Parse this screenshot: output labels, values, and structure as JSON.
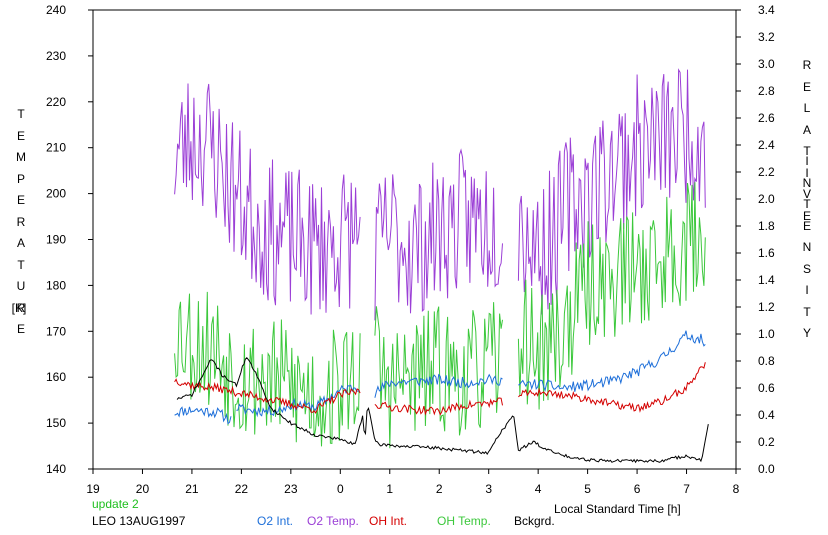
{
  "chart_data": {
    "type": "line",
    "left_axis_label_letters": [
      "T",
      "E",
      "M",
      "P",
      "E",
      "R",
      "A",
      "T",
      "U",
      "R",
      "E"
    ],
    "left_axis_unit": "[K]",
    "right_axis_label_letters": [
      "R",
      "E",
      "L",
      "A",
      "T",
      "I",
      "V",
      "E"
    ],
    "right_axis_label_letters_2": [
      "I",
      "N",
      "T",
      "E",
      "N",
      "S",
      "I",
      "T",
      "Y"
    ],
    "xlabel": "Local Standard Time [h]",
    "x_tick_labels": [
      "19",
      "20",
      "21",
      "22",
      "23",
      "0",
      "1",
      "2",
      "3",
      "4",
      "5",
      "6",
      "7",
      "8"
    ],
    "xlim": [
      19,
      32
    ],
    "y_left": {
      "lim": [
        140,
        240
      ],
      "ticks": [
        140,
        150,
        160,
        170,
        180,
        190,
        200,
        210,
        220,
        230,
        240
      ]
    },
    "y_right": {
      "lim": [
        0.0,
        3.4
      ],
      "ticks": [
        "0.0",
        "0.2",
        "0.4",
        "0.6",
        "0.8",
        "1.0",
        "1.2",
        "1.4",
        "1.6",
        "1.8",
        "2.0",
        "2.2",
        "2.4",
        "2.6",
        "2.8",
        "3.0",
        "3.2",
        "3.4"
      ]
    },
    "grid": false,
    "legend_placement": "bottom",
    "series": [
      {
        "name": "O2 Int.",
        "axis": "right",
        "color": "#1e6fd9",
        "noise": 0.04,
        "step": 0.03,
        "seed": 11,
        "segments": [
          {
            "x": [
              20.65,
              21.0,
              21.5,
              21.8
            ],
            "y": [
              0.42,
              0.44,
              0.42,
              0.36
            ]
          },
          {
            "x": [
              21.9,
              22.0,
              22.5,
              22.8,
              23.0,
              23.5,
              24.0,
              24.4
            ],
            "y": [
              0.46,
              0.44,
              0.43,
              0.44,
              0.48,
              0.46,
              0.58,
              0.62
            ]
          },
          {
            "x": [
              24.7,
              25.0,
              25.5,
              26.0,
              26.5,
              27.0,
              27.3
            ],
            "y": [
              0.56,
              0.64,
              0.65,
              0.66,
              0.64,
              0.66,
              0.66
            ]
          },
          {
            "x": [
              27.6,
              28.0,
              28.5,
              29.0,
              29.5,
              30.0,
              30.5,
              31.0,
              31.3,
              31.4
            ],
            "y": [
              0.62,
              0.63,
              0.6,
              0.62,
              0.65,
              0.72,
              0.82,
              0.99,
              0.96,
              0.88
            ]
          }
        ]
      },
      {
        "name": "O2 Temp.",
        "axis": "left",
        "color": "#9b3fd6",
        "noise": 16,
        "step": 0.03,
        "seed": 23,
        "segments": [
          {
            "x": [
              20.65,
              21.0,
              21.3,
              21.6,
              22.0,
              22.5,
              23.0,
              23.5,
              24.0,
              24.4
            ],
            "y": [
              208,
              212,
              212,
              206,
              198,
              192,
              190,
              188,
              190,
              192
            ]
          },
          {
            "x": [
              24.7,
              25.0,
              25.5,
              26.0,
              26.5,
              27.0,
              27.3
            ],
            "y": [
              186,
              192,
              188,
              192,
              194,
              194,
              194
            ]
          },
          {
            "x": [
              27.6,
              28.0,
              28.3,
              28.6,
              29.0,
              29.5,
              30.0,
              30.5,
              31.0,
              31.4
            ],
            "y": [
              195,
              188,
              190,
              198,
              200,
              206,
              210,
              212,
              214,
              212
            ]
          }
        ]
      },
      {
        "name": "OH Int.",
        "axis": "right",
        "color": "#d40000",
        "noise": 0.03,
        "step": 0.03,
        "seed": 37,
        "segments": [
          {
            "x": [
              20.65,
              21.0,
              21.5,
              22.0,
              22.5,
              23.0,
              23.5,
              24.0,
              24.4
            ],
            "y": [
              0.66,
              0.62,
              0.6,
              0.56,
              0.52,
              0.48,
              0.44,
              0.55,
              0.58
            ]
          },
          {
            "x": [
              24.7,
              25.0,
              25.5,
              26.0,
              26.5,
              27.0,
              27.3
            ],
            "y": [
              0.48,
              0.46,
              0.44,
              0.43,
              0.47,
              0.49,
              0.5
            ]
          },
          {
            "x": [
              27.6,
              28.0,
              28.5,
              29.0,
              29.5,
              30.0,
              30.5,
              31.0,
              31.4
            ],
            "y": [
              0.55,
              0.57,
              0.55,
              0.52,
              0.48,
              0.45,
              0.5,
              0.6,
              0.8
            ]
          }
        ]
      },
      {
        "name": "OH Temp.",
        "axis": "left",
        "color": "#3cc83c",
        "noise": 14,
        "step": 0.03,
        "seed": 53,
        "segments": [
          {
            "x": [
              20.65,
              21.0,
              21.5,
              22.0,
              22.5,
              23.0,
              23.5,
              24.0,
              24.4
            ],
            "y": [
              172,
              168,
              166,
              160,
              160,
              158,
              156,
              158,
              162
            ]
          },
          {
            "x": [
              24.7,
              25.0,
              25.5,
              26.0,
              26.5,
              27.0,
              27.3
            ],
            "y": [
              164,
              158,
              160,
              162,
              160,
              162,
              164
            ]
          },
          {
            "x": [
              27.6,
              28.0,
              28.5,
              29.0,
              29.5,
              30.0,
              30.5,
              31.0,
              31.4
            ],
            "y": [
              170,
              165,
              170,
              180,
              182,
              184,
              186,
              190,
              190
            ]
          }
        ]
      },
      {
        "name": "Bckgrd.",
        "axis": "right",
        "color": "#000000",
        "noise": 0.012,
        "step": 0.03,
        "seed": 71,
        "segments": [
          {
            "x": [
              20.7,
              21.0,
              21.2,
              21.4,
              21.6,
              21.9,
              22.1,
              22.3,
              22.6,
              23.0,
              23.5,
              24.0,
              24.3,
              24.45,
              24.5,
              24.55,
              24.7,
              24.8,
              24.9,
              25.2,
              25.8,
              26.4,
              27.0,
              27.2,
              27.5,
              27.6,
              27.9,
              28.2,
              28.5,
              29.0,
              29.5,
              30.0,
              30.5,
              31.0,
              31.3,
              31.45
            ],
            "y": [
              0.52,
              0.55,
              0.68,
              0.82,
              0.7,
              0.62,
              0.84,
              0.7,
              0.45,
              0.34,
              0.25,
              0.22,
              0.18,
              0.4,
              0.2,
              0.5,
              0.2,
              0.18,
              0.18,
              0.17,
              0.16,
              0.14,
              0.12,
              0.25,
              0.4,
              0.14,
              0.2,
              0.14,
              0.1,
              0.07,
              0.06,
              0.06,
              0.06,
              0.1,
              0.06,
              0.35
            ]
          }
        ]
      }
    ]
  },
  "footer": {
    "update_label": "update 2",
    "caption": "LEO 13AUG1997"
  }
}
